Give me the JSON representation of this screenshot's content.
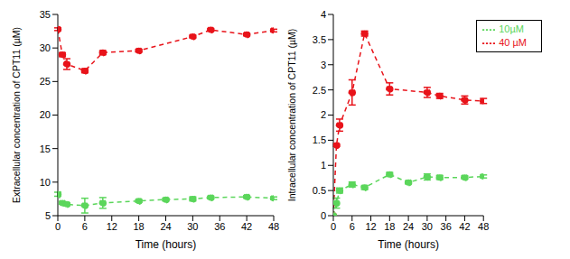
{
  "chart_data": [
    {
      "type": "line",
      "xlabel": "Time (hours)",
      "ylabel": "Extracellular concentration of CPT11 (µM)",
      "xlim": [
        0,
        48
      ],
      "xticks": [
        0,
        6,
        12,
        18,
        24,
        30,
        36,
        42,
        48
      ],
      "ylim": [
        5,
        35
      ],
      "yticks": [
        5,
        10,
        15,
        20,
        25,
        30,
        35
      ],
      "series": [
        {
          "name": "40 µM",
          "color": "#e8131a",
          "marker": "circle",
          "line_style": "dashed",
          "x": [
            0,
            1,
            2,
            6,
            10,
            18,
            30,
            34,
            42,
            48
          ],
          "values": [
            32.8,
            29,
            27.6,
            26.6,
            29.3,
            29.6,
            31.7,
            32.7,
            32,
            32.6
          ],
          "errors": [
            0.2,
            0.3,
            0.8,
            0.3,
            0.3,
            0.2,
            0.2,
            0.2,
            0.2,
            0.2
          ]
        },
        {
          "name": "10µM",
          "color": "#5bd65b",
          "marker": "circle",
          "line_style": "dashed",
          "x": [
            0,
            1,
            2,
            6,
            10,
            18,
            24,
            30,
            34,
            42,
            48
          ],
          "values": [
            8.2,
            6.9,
            6.7,
            6.5,
            6.9,
            7.2,
            7.4,
            7.5,
            7.7,
            7.8,
            7.6
          ],
          "errors": [
            0.3,
            0.2,
            0.2,
            1.1,
            0.8,
            0.2,
            0.2,
            0.3,
            0.2,
            0.2,
            0.2
          ]
        }
      ]
    },
    {
      "type": "line",
      "xlabel": "Time (hours)",
      "ylabel": "Intracellular concentration of CPT11 (µM)",
      "xlim": [
        0,
        48
      ],
      "xticks": [
        0,
        6,
        12,
        18,
        24,
        30,
        36,
        42,
        48
      ],
      "ylim": [
        0,
        4
      ],
      "yticks": [
        0,
        0.5,
        1,
        1.5,
        2,
        2.5,
        3,
        3.5,
        4
      ],
      "legend": "upper right",
      "series": [
        {
          "name": "40 µM",
          "color": "#e8131a",
          "marker": "circle",
          "line_style": "dashed",
          "x": [
            0,
            1,
            2,
            6,
            10,
            18,
            30,
            34,
            42,
            48
          ],
          "values": [
            0,
            1.4,
            1.8,
            2.45,
            3.62,
            2.52,
            2.45,
            2.38,
            2.3,
            2.28
          ],
          "errors": [
            0,
            0.02,
            0.12,
            0.25,
            0.05,
            0.12,
            0.1,
            0.05,
            0.08,
            0.05
          ]
        },
        {
          "name": "10µM",
          "color": "#5bd65b",
          "marker": "circle",
          "line_style": "dashed",
          "x": [
            0,
            1,
            2,
            6,
            10,
            18,
            24,
            30,
            34,
            42,
            48
          ],
          "values": [
            0,
            0.25,
            0.5,
            0.62,
            0.56,
            0.82,
            0.66,
            0.77,
            0.76,
            0.76,
            0.78
          ],
          "errors": [
            0,
            0.1,
            0.05,
            0.05,
            0.04,
            0.04,
            0.03,
            0.06,
            0.04,
            0.03,
            0.03
          ]
        }
      ]
    }
  ]
}
